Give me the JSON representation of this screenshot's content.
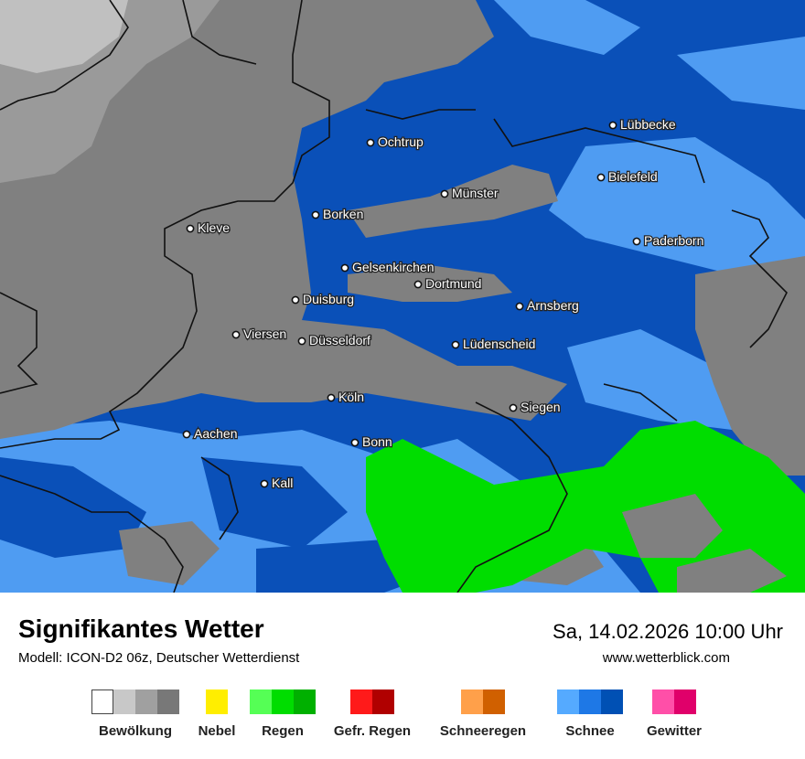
{
  "title": "Signifikantes Wetter",
  "model": "Modell: ICON-D2 06z, Deutscher Wetterdienst",
  "datetime": "Sa, 14.02.2026 10:00 Uhr",
  "website": "www.wetterblick.com",
  "cities": [
    {
      "name": "Ochtrup"
    },
    {
      "name": "Lübbecke"
    },
    {
      "name": "Bielefeld"
    },
    {
      "name": "Münster"
    },
    {
      "name": "Borken"
    },
    {
      "name": "Kleve"
    },
    {
      "name": "Paderborn"
    },
    {
      "name": "Gelsenkirchen"
    },
    {
      "name": "Dortmund"
    },
    {
      "name": "Duisburg"
    },
    {
      "name": "Arnsberg"
    },
    {
      "name": "Viersen"
    },
    {
      "name": "Düsseldorf"
    },
    {
      "name": "Lüdenscheid"
    },
    {
      "name": "Köln"
    },
    {
      "name": "Siegen"
    },
    {
      "name": "Aachen"
    },
    {
      "name": "Bonn"
    },
    {
      "name": "Kall"
    }
  ],
  "legend": [
    {
      "label": "Bewölkung",
      "colors": [
        "#ffffff",
        "#c8c8c8",
        "#a0a0a0",
        "#787878"
      ]
    },
    {
      "label": "Nebel",
      "colors": [
        "#ffee00"
      ]
    },
    {
      "label": "Regen",
      "colors": [
        "#55ff55",
        "#00dd00",
        "#00b000"
      ]
    },
    {
      "label": "Gefr. Regen",
      "colors": [
        "#ff1a1a",
        "#b00000"
      ]
    },
    {
      "label": "Schneeregen",
      "colors": [
        "#ffa04a",
        "#d06000"
      ]
    },
    {
      "label": "Schnee",
      "colors": [
        "#55aaff",
        "#1e78e6",
        "#0050b4"
      ]
    },
    {
      "label": "Gewitter",
      "colors": [
        "#ff4fa8",
        "#e0006a"
      ]
    }
  ],
  "map_colors": {
    "cloud_light": "#c0c0c0",
    "cloud_mid": "#9a9a9a",
    "cloud_dark": "#808080",
    "snow_light": "#4f9cf2",
    "snow_dark": "#0a50b8",
    "rain": "#00dd00",
    "border": "#111111"
  }
}
